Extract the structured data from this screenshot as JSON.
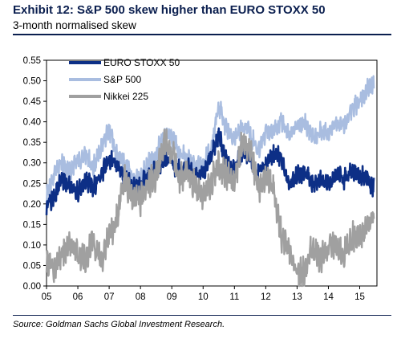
{
  "header": {
    "title": "Exhibit 12: S&P 500 skew higher than EURO STOXX 50",
    "subtitle": "3-month normalised skew"
  },
  "footer": {
    "source": "Source: Goldman Sachs Global Investment Research."
  },
  "chart_data": {
    "type": "line",
    "title": "Exhibit 12: S&P 500 skew higher than EURO STOXX 50",
    "subtitle": "3-month normalised skew",
    "xlabel": "",
    "ylabel": "",
    "xlim": [
      2005.0,
      2015.55
    ],
    "ylim": [
      0.0,
      0.55
    ],
    "y_ticks": [
      0.0,
      0.05,
      0.1,
      0.15,
      0.2,
      0.25,
      0.3,
      0.35,
      0.4,
      0.45,
      0.5,
      0.55
    ],
    "y_tick_labels": [
      "0.00",
      "0.05",
      "0.10",
      "0.15",
      "0.20",
      "0.25",
      "0.30",
      "0.35",
      "0.40",
      "0.45",
      "0.50",
      "0.55"
    ],
    "x_ticks": [
      2005,
      2006,
      2007,
      2008,
      2009,
      2010,
      2011,
      2012,
      2013,
      2014,
      2015
    ],
    "x_tick_labels": [
      "05",
      "06",
      "07",
      "08",
      "09",
      "10",
      "11",
      "12",
      "13",
      "14",
      "15"
    ],
    "grid": false,
    "legend_position": "top-left",
    "series": [
      {
        "name": "S&P 500",
        "color": "#a9bde0",
        "points": [
          [
            2005.0,
            0.22
          ],
          [
            2005.25,
            0.27
          ],
          [
            2005.5,
            0.3
          ],
          [
            2005.75,
            0.28
          ],
          [
            2006.0,
            0.3
          ],
          [
            2006.25,
            0.32
          ],
          [
            2006.5,
            0.29
          ],
          [
            2006.75,
            0.34
          ],
          [
            2007.0,
            0.38
          ],
          [
            2007.25,
            0.32
          ],
          [
            2007.5,
            0.3
          ],
          [
            2007.75,
            0.27
          ],
          [
            2008.0,
            0.26
          ],
          [
            2008.25,
            0.3
          ],
          [
            2008.5,
            0.32
          ],
          [
            2008.75,
            0.37
          ],
          [
            2009.0,
            0.36
          ],
          [
            2009.25,
            0.33
          ],
          [
            2009.5,
            0.31
          ],
          [
            2009.75,
            0.29
          ],
          [
            2010.0,
            0.3
          ],
          [
            2010.25,
            0.33
          ],
          [
            2010.5,
            0.44
          ],
          [
            2010.75,
            0.38
          ],
          [
            2011.0,
            0.36
          ],
          [
            2011.25,
            0.39
          ],
          [
            2011.5,
            0.37
          ],
          [
            2011.75,
            0.33
          ],
          [
            2012.0,
            0.37
          ],
          [
            2012.25,
            0.38
          ],
          [
            2012.5,
            0.4
          ],
          [
            2012.75,
            0.37
          ],
          [
            2013.0,
            0.39
          ],
          [
            2013.25,
            0.4
          ],
          [
            2013.5,
            0.36
          ],
          [
            2013.75,
            0.38
          ],
          [
            2014.0,
            0.37
          ],
          [
            2014.25,
            0.4
          ],
          [
            2014.5,
            0.39
          ],
          [
            2014.75,
            0.43
          ],
          [
            2015.0,
            0.45
          ],
          [
            2015.25,
            0.48
          ],
          [
            2015.45,
            0.49
          ]
        ]
      },
      {
        "name": "EURO STOXX 50",
        "color": "#0d2f86",
        "points": [
          [
            2005.0,
            0.19
          ],
          [
            2005.25,
            0.22
          ],
          [
            2005.5,
            0.26
          ],
          [
            2005.75,
            0.24
          ],
          [
            2006.0,
            0.23
          ],
          [
            2006.25,
            0.26
          ],
          [
            2006.5,
            0.24
          ],
          [
            2006.75,
            0.27
          ],
          [
            2007.0,
            0.31
          ],
          [
            2007.25,
            0.29
          ],
          [
            2007.5,
            0.26
          ],
          [
            2007.75,
            0.24
          ],
          [
            2008.0,
            0.25
          ],
          [
            2008.25,
            0.27
          ],
          [
            2008.5,
            0.28
          ],
          [
            2008.75,
            0.31
          ],
          [
            2009.0,
            0.3
          ],
          [
            2009.25,
            0.28
          ],
          [
            2009.5,
            0.29
          ],
          [
            2009.75,
            0.27
          ],
          [
            2010.0,
            0.28
          ],
          [
            2010.25,
            0.31
          ],
          [
            2010.5,
            0.37
          ],
          [
            2010.75,
            0.3
          ],
          [
            2011.0,
            0.28
          ],
          [
            2011.25,
            0.33
          ],
          [
            2011.5,
            0.31
          ],
          [
            2011.75,
            0.27
          ],
          [
            2012.0,
            0.3
          ],
          [
            2012.25,
            0.32
          ],
          [
            2012.5,
            0.31
          ],
          [
            2012.75,
            0.25
          ],
          [
            2013.0,
            0.27
          ],
          [
            2013.25,
            0.28
          ],
          [
            2013.5,
            0.25
          ],
          [
            2013.75,
            0.26
          ],
          [
            2014.0,
            0.25
          ],
          [
            2014.25,
            0.27
          ],
          [
            2014.5,
            0.26
          ],
          [
            2014.75,
            0.28
          ],
          [
            2015.0,
            0.27
          ],
          [
            2015.25,
            0.26
          ],
          [
            2015.45,
            0.24
          ]
        ]
      },
      {
        "name": "Nikkei 225",
        "color": "#a0a0a0",
        "points": [
          [
            2005.0,
            0.06
          ],
          [
            2005.25,
            0.03
          ],
          [
            2005.5,
            0.08
          ],
          [
            2005.75,
            0.1
          ],
          [
            2006.0,
            0.08
          ],
          [
            2006.25,
            0.07
          ],
          [
            2006.5,
            0.11
          ],
          [
            2006.75,
            0.06
          ],
          [
            2007.0,
            0.12
          ],
          [
            2007.25,
            0.16
          ],
          [
            2007.5,
            0.27
          ],
          [
            2007.75,
            0.2
          ],
          [
            2008.0,
            0.21
          ],
          [
            2008.25,
            0.25
          ],
          [
            2008.5,
            0.27
          ],
          [
            2008.75,
            0.35
          ],
          [
            2009.0,
            0.33
          ],
          [
            2009.25,
            0.26
          ],
          [
            2009.5,
            0.28
          ],
          [
            2009.75,
            0.24
          ],
          [
            2010.0,
            0.22
          ],
          [
            2010.25,
            0.25
          ],
          [
            2010.5,
            0.29
          ],
          [
            2010.75,
            0.27
          ],
          [
            2011.0,
            0.25
          ],
          [
            2011.25,
            0.35
          ],
          [
            2011.5,
            0.33
          ],
          [
            2011.75,
            0.24
          ],
          [
            2012.0,
            0.26
          ],
          [
            2012.25,
            0.24
          ],
          [
            2012.5,
            0.12
          ],
          [
            2012.75,
            0.09
          ],
          [
            2013.0,
            0.02
          ],
          [
            2013.25,
            0.04
          ],
          [
            2013.5,
            0.1
          ],
          [
            2013.75,
            0.07
          ],
          [
            2014.0,
            0.09
          ],
          [
            2014.25,
            0.1
          ],
          [
            2014.5,
            0.08
          ],
          [
            2014.75,
            0.12
          ],
          [
            2015.0,
            0.11
          ],
          [
            2015.25,
            0.14
          ],
          [
            2015.45,
            0.18
          ]
        ]
      }
    ]
  }
}
